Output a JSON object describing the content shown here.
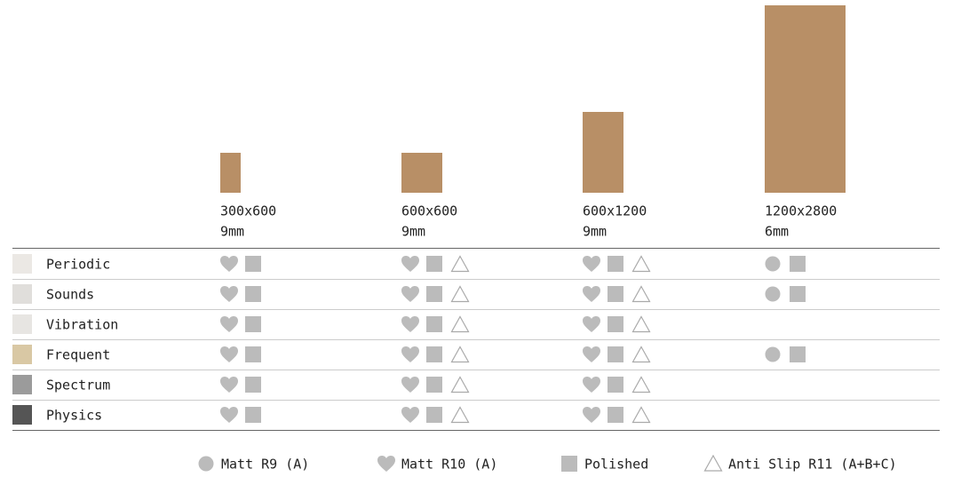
{
  "sizes": [
    {
      "label": "300x600",
      "thickness": "9mm"
    },
    {
      "label": "600x600",
      "thickness": "9mm"
    },
    {
      "label": "600x1200",
      "thickness": "9mm"
    },
    {
      "label": "1200x2800",
      "thickness": "6mm"
    }
  ],
  "legend": [
    "Matt R9 (A)",
    "Matt R10 (A)",
    "Polished",
    "Anti Slip R11 (A+B+C)"
  ],
  "rows": [
    {
      "name": "Periodic",
      "availability": [
        [
          false,
          true,
          true,
          false
        ],
        [
          false,
          true,
          true,
          true
        ],
        [
          false,
          true,
          true,
          true
        ],
        [
          true,
          false,
          true,
          false
        ]
      ]
    },
    {
      "name": "Sounds",
      "availability": [
        [
          false,
          true,
          true,
          false
        ],
        [
          false,
          true,
          true,
          true
        ],
        [
          false,
          true,
          true,
          true
        ],
        [
          true,
          false,
          true,
          false
        ]
      ]
    },
    {
      "name": "Vibration",
      "availability": [
        [
          false,
          true,
          true,
          false
        ],
        [
          false,
          true,
          true,
          true
        ],
        [
          false,
          true,
          true,
          true
        ],
        [
          false,
          false,
          false,
          false
        ]
      ]
    },
    {
      "name": "Frequent",
      "availability": [
        [
          false,
          true,
          true,
          false
        ],
        [
          false,
          true,
          true,
          true
        ],
        [
          false,
          true,
          true,
          true
        ],
        [
          true,
          false,
          true,
          false
        ]
      ]
    },
    {
      "name": "Spectrum",
      "availability": [
        [
          false,
          true,
          true,
          false
        ],
        [
          false,
          true,
          true,
          true
        ],
        [
          false,
          true,
          true,
          true
        ],
        [
          false,
          false,
          false,
          false
        ]
      ]
    },
    {
      "name": "Physics",
      "availability": [
        [
          false,
          true,
          true,
          false
        ],
        [
          false,
          true,
          true,
          true
        ],
        [
          false,
          true,
          true,
          true
        ],
        [
          false,
          false,
          false,
          false
        ]
      ]
    }
  ]
}
